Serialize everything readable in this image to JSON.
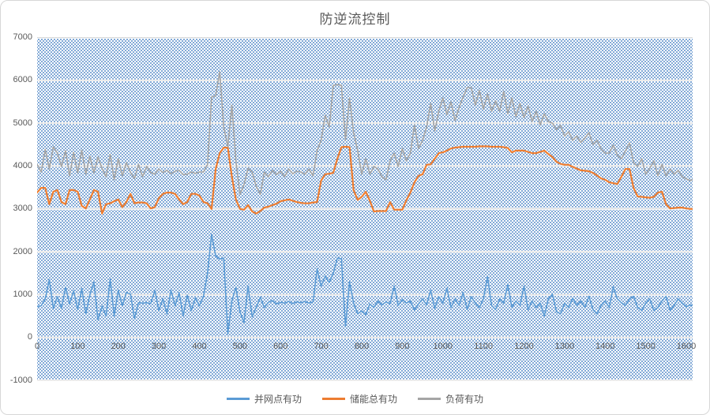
{
  "title": "防逆流控制",
  "legend": {
    "items": [
      {
        "label": "并网点有功",
        "color": "#5B9BD5"
      },
      {
        "label": "储能总有功",
        "color": "#ED7D31"
      },
      {
        "label": "负荷有功",
        "color": "#A5A5A5"
      }
    ]
  },
  "colors": {
    "grid_line": "#D9D9D9",
    "axis_text": "#595959",
    "plot_pattern_dot": "#4F86C6",
    "background": "#FFFFFF"
  },
  "chart_data": {
    "type": "line",
    "title": "防逆流控制",
    "xlabel": "",
    "ylabel": "",
    "xlim": [
      0,
      1620
    ],
    "ylim": [
      -1000,
      7000
    ],
    "grid": "horizontal",
    "legend_position": "bottom",
    "plot_area_fill": "blue-dot-pattern",
    "x_ticks": [
      0,
      100,
      200,
      300,
      400,
      500,
      600,
      700,
      800,
      900,
      1000,
      1100,
      1200,
      1300,
      1400,
      1500,
      1600
    ],
    "y_ticks": [
      7000,
      6000,
      5000,
      4000,
      3000,
      2000,
      1000,
      0,
      -1000
    ],
    "x": {
      "start": 0,
      "step": 10,
      "count": 163
    },
    "series": [
      {
        "name": "并网点有功",
        "id": "pcc-active-power",
        "color": "#5B9BD5",
        "width": 1.6,
        "values": [
          720,
          740,
          900,
          1350,
          680,
          950,
          680,
          1170,
          780,
          1090,
          650,
          1140,
          550,
          1000,
          1290,
          410,
          730,
          500,
          1360,
          500,
          1100,
          740,
          1050,
          1010,
          440,
          810,
          800,
          810,
          790,
          1100,
          630,
          900,
          550,
          1100,
          740,
          1050,
          500,
          990,
          630,
          920,
          740,
          960,
          1500,
          2400,
          1900,
          1830,
          1850,
          80,
          850,
          1170,
          590,
          350,
          1200,
          480,
          700,
          940,
          700,
          820,
          860,
          780,
          820,
          800,
          840,
          790,
          830,
          810,
          840,
          800,
          830,
          1600,
          1200,
          1430,
          1280,
          1500,
          1850,
          1840,
          250,
          1300,
          800,
          550,
          620,
          530,
          780,
          700,
          850,
          760,
          830,
          790,
          1200,
          750,
          880,
          800,
          850,
          640,
          780,
          900,
          760,
          1100,
          680,
          950,
          800,
          1150,
          700,
          900,
          750,
          1050,
          650,
          950,
          800,
          700,
          900,
          1420,
          750,
          650,
          900,
          800,
          1230,
          700,
          850,
          750,
          1200,
          650,
          850,
          700,
          800,
          500,
          900,
          1010,
          600,
          550,
          800,
          700,
          920,
          750,
          850,
          700,
          960,
          650,
          550,
          750,
          850,
          700,
          1180,
          900,
          810,
          750,
          900,
          960,
          700,
          630,
          800,
          900,
          630,
          700,
          850,
          960,
          630,
          750,
          900,
          800,
          720,
          760,
          740
        ]
      },
      {
        "name": "储能总有功",
        "id": "storage-total-active-power",
        "color": "#ED7D31",
        "width": 2.2,
        "values": [
          3380,
          3490,
          3490,
          3110,
          3400,
          3440,
          3160,
          3110,
          3440,
          3440,
          3400,
          3070,
          3010,
          3220,
          3440,
          3400,
          2890,
          3110,
          3130,
          3180,
          3220,
          3040,
          3160,
          3350,
          3130,
          3150,
          3150,
          3130,
          3010,
          3040,
          3250,
          3350,
          3380,
          3380,
          3350,
          3220,
          3110,
          3160,
          3350,
          3350,
          3310,
          3160,
          3130,
          3000,
          3930,
          4300,
          4430,
          4430,
          3750,
          3220,
          3000,
          2980,
          3090,
          2940,
          2890,
          2950,
          3030,
          3050,
          3090,
          3120,
          3180,
          3200,
          3220,
          3190,
          3160,
          3140,
          3130,
          3130,
          3150,
          3160,
          3660,
          3810,
          3820,
          3840,
          4170,
          4440,
          4450,
          4440,
          3440,
          3210,
          3280,
          3400,
          3190,
          2940,
          2950,
          2950,
          2950,
          3160,
          2980,
          2980,
          2980,
          3200,
          3380,
          3620,
          3770,
          3810,
          4030,
          4040,
          4170,
          4300,
          4320,
          4360,
          4410,
          4430,
          4440,
          4450,
          4450,
          4450,
          4450,
          4460,
          4460,
          4460,
          4450,
          4450,
          4450,
          4440,
          4420,
          4320,
          4360,
          4360,
          4360,
          4330,
          4300,
          4300,
          4330,
          4360,
          4280,
          4210,
          4100,
          4050,
          4030,
          4030,
          3980,
          3940,
          3900,
          3890,
          3880,
          3840,
          3780,
          3710,
          3680,
          3620,
          3600,
          3580,
          3750,
          3930,
          3930,
          3490,
          3290,
          3280,
          3270,
          3260,
          3280,
          3380,
          3400,
          3110,
          3010,
          3020,
          3030,
          3030,
          3010,
          3000,
          3000
        ]
      },
      {
        "name": "负荷有功",
        "id": "load-active-power",
        "color": "#A5A5A5",
        "width": 1.6,
        "values": [
          4040,
          3860,
          4390,
          3930,
          4450,
          4300,
          3990,
          4360,
          3770,
          4320,
          3840,
          4370,
          3810,
          4230,
          3840,
          4210,
          3950,
          3750,
          4270,
          3680,
          4170,
          3770,
          4080,
          3850,
          3710,
          4040,
          3750,
          3990,
          3850,
          3810,
          3930,
          3850,
          3900,
          3820,
          3880,
          3900,
          3800,
          3810,
          3860,
          3830,
          3860,
          3860,
          4040,
          5610,
          5640,
          6200,
          4910,
          4450,
          5420,
          4120,
          3340,
          3570,
          3950,
          3860,
          3530,
          3340,
          3860,
          3750,
          3900,
          3800,
          3880,
          3750,
          3930,
          3820,
          3880,
          3860,
          3810,
          3930,
          3770,
          4360,
          4600,
          5180,
          4910,
          5880,
          5900,
          5880,
          4600,
          5590,
          4780,
          4360,
          3810,
          4170,
          3810,
          3990,
          3930,
          3750,
          3680,
          4120,
          4300,
          3990,
          4410,
          4120,
          4300,
          4960,
          4410,
          4600,
          4910,
          5460,
          4820,
          5280,
          5590,
          5200,
          5500,
          5060,
          5370,
          5610,
          5830,
          5830,
          5420,
          5770,
          5330,
          5680,
          5280,
          5520,
          5280,
          5740,
          5220,
          5590,
          5150,
          5460,
          5130,
          5400,
          5040,
          5280,
          4960,
          5220,
          5040,
          5000,
          4850,
          4950,
          4700,
          4800,
          4600,
          4700,
          4550,
          4650,
          4780,
          4500,
          4600,
          4400,
          4300,
          4300,
          4490,
          4250,
          4170,
          4350,
          4540,
          4080,
          3990,
          4170,
          3810,
          3950,
          4120,
          3770,
          4040,
          3770,
          3930,
          3810,
          3900,
          3750,
          3700,
          3660,
          3700
        ]
      }
    ]
  }
}
